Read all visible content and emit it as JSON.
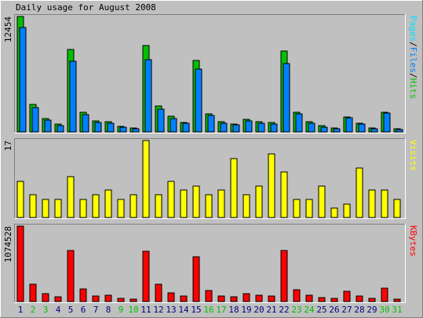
{
  "chart_data": {
    "type": "bar",
    "title": "Daily usage for August 2008",
    "days": [
      "1",
      "2",
      "3",
      "4",
      "5",
      "6",
      "7",
      "8",
      "9",
      "10",
      "11",
      "12",
      "13",
      "14",
      "15",
      "16",
      "17",
      "18",
      "19",
      "20",
      "21",
      "22",
      "23",
      "24",
      "25",
      "26",
      "27",
      "28",
      "29",
      "30",
      "31"
    ],
    "weekend_days": [
      "2",
      "3",
      "9",
      "10",
      "16",
      "17",
      "23",
      "24",
      "30",
      "31"
    ],
    "panels": [
      {
        "id": "hits",
        "max_label": "12454",
        "ymax": 12454,
        "series": [
          {
            "name": "Hits",
            "color": "#00c000",
            "values": [
              12454,
              2961,
              1418,
              867,
              8908,
              2116,
              1187,
              1060,
              595,
              394,
              9313,
              2788,
              1708,
              1021,
              7733,
              1979,
              1084,
              852,
              1372,
              1109,
              1005,
              8730,
              2145,
              1128,
              648,
              422,
              1630,
              964,
              428,
              2151,
              350
            ]
          },
          {
            "name": "Files",
            "color": "#0080ff",
            "values": [
              11310,
              2650,
              1265,
              700,
              7630,
              1890,
              990,
              930,
              500,
              330,
              7760,
              2470,
              1460,
              900,
              6770,
              1760,
              950,
              750,
              1215,
              945,
              830,
              7390,
              1910,
              960,
              530,
              360,
              1500,
              870,
              350,
              2010,
              290
            ]
          },
          {
            "name": "Pages",
            "color": "#00e0ff",
            "values": [
              0,
              0,
              0,
              0,
              0,
              0,
              0,
              0,
              0,
              0,
              0,
              0,
              0,
              0,
              0,
              0,
              0,
              0,
              0,
              0,
              0,
              0,
              0,
              0,
              0,
              0,
              0,
              0,
              0,
              0,
              0
            ]
          }
        ]
      },
      {
        "id": "visits",
        "max_label": "17",
        "ymax": 17,
        "series": [
          {
            "name": "Visits",
            "color": "#ffff00",
            "values": [
              8,
              5,
              4,
              4,
              9,
              4,
              5,
              6,
              4,
              5,
              17,
              5,
              8,
              6,
              7,
              5,
              6,
              13,
              5,
              7,
              14,
              10,
              4,
              4,
              7,
              2,
              3,
              11,
              6,
              6,
              4
            ]
          }
        ]
      },
      {
        "id": "kbytes",
        "max_label": "1074528",
        "ymax": 1074528,
        "series": [
          {
            "name": "KBytes",
            "color": "#ff0000",
            "values": [
              1074528,
              248000,
              110000,
              68000,
              725000,
              178000,
              80000,
              92000,
              45000,
              38000,
              711000,
              248000,
              128000,
              80000,
              634000,
              158000,
              80000,
              70000,
              116000,
              90000,
              78000,
              723000,
              172000,
              92000,
              56000,
              44000,
              148000,
              80000,
              40000,
              186000,
              38000
            ]
          }
        ]
      }
    ],
    "side_labels": {
      "hits": [
        {
          "text": "Pages",
          "color": "#00e0ff"
        },
        {
          "text": "/",
          "color": "#000000"
        },
        {
          "text": "Files",
          "color": "#0080ff"
        },
        {
          "text": "/",
          "color": "#000000"
        },
        {
          "text": "Hits",
          "color": "#00c000"
        }
      ],
      "visits": [
        {
          "text": "Visits",
          "color": "#ffff00"
        }
      ],
      "kbytes": [
        {
          "text": "KBytes",
          "color": "#ff0000"
        }
      ]
    },
    "colors": {
      "background": "#c0c0c0",
      "plot": "#c0c0c0",
      "weekday_label": "#000080",
      "weekend_label": "#00c000",
      "grid": "#a0a0a0"
    }
  }
}
